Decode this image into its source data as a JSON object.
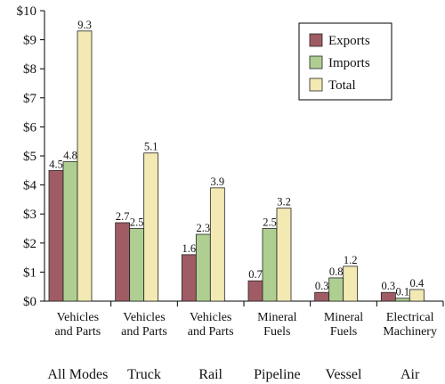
{
  "chart_data": {
    "type": "bar",
    "title": "",
    "xlabel": "",
    "ylabel": "",
    "ylim": [
      0,
      10
    ],
    "y_ticks": [
      "$0",
      "$1",
      "$2",
      "$3",
      "$4",
      "$5",
      "$6",
      "$7",
      "$8",
      "$9",
      "$10"
    ],
    "grid": false,
    "legend_position": "top-right",
    "groups": [
      {
        "category": [
          "Vehicles",
          "and Parts"
        ],
        "mode": "All Modes"
      },
      {
        "category": [
          "Vehicles",
          "and Parts"
        ],
        "mode": "Truck"
      },
      {
        "category": [
          "Vehicles",
          "and Parts"
        ],
        "mode": "Rail"
      },
      {
        "category": [
          "Mineral",
          "Fuels"
        ],
        "mode": "Pipeline"
      },
      {
        "category": [
          "Mineral",
          "Fuels"
        ],
        "mode": "Vessel"
      },
      {
        "category": [
          "Electrical",
          "Machinery"
        ],
        "mode": "Air"
      }
    ],
    "series": [
      {
        "name": "Exports",
        "color": "#a05c64",
        "values": [
          4.5,
          2.7,
          1.6,
          0.7,
          0.3,
          0.3
        ]
      },
      {
        "name": "Imports",
        "color": "#afcf92",
        "values": [
          4.8,
          2.5,
          2.3,
          2.5,
          0.8,
          0.1
        ]
      },
      {
        "name": "Total",
        "color": "#f2eab2",
        "values": [
          9.3,
          5.1,
          3.9,
          3.2,
          1.2,
          0.4
        ]
      }
    ]
  }
}
